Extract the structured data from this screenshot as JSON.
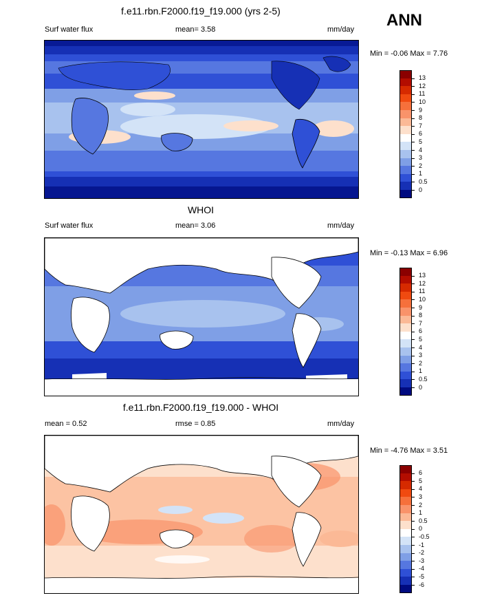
{
  "season": "ANN",
  "panels": [
    {
      "title": "f.e11.rbn.F2000.f19_f19.000 (yrs 2-5)",
      "left_label": "Surf water flux",
      "center_label": "mean=   3.58",
      "units": "mm/day",
      "range_text": "Min =  -0.06 Max =   7.76",
      "colorbar": {
        "labels": [
          "13",
          "12",
          "11",
          "10",
          "9",
          "8",
          "7",
          "6",
          "5",
          "4",
          "3",
          "2",
          "1",
          "0.5",
          "0"
        ],
        "colors": [
          "#8b0000",
          "#b30d00",
          "#d62a00",
          "#f04a10",
          "#f6703b",
          "#f9936a",
          "#fbb996",
          "#fde0cc",
          "#ffffff",
          "#d3e3f7",
          "#a8c2ee",
          "#7f9fe6",
          "#5677e0",
          "#2f50d6",
          "#1630b5",
          "#000b80"
        ]
      }
    },
    {
      "title": "WHOI",
      "left_label": "Surf water flux",
      "center_label": "mean=   3.06",
      "units": "mm/day",
      "range_text": "Min =  -0.13 Max =   6.96",
      "colorbar": {
        "labels": [
          "13",
          "12",
          "11",
          "10",
          "9",
          "8",
          "7",
          "6",
          "5",
          "4",
          "3",
          "2",
          "1",
          "0.5",
          "0"
        ],
        "colors": [
          "#8b0000",
          "#b30d00",
          "#d62a00",
          "#f04a10",
          "#f6703b",
          "#f9936a",
          "#fbb996",
          "#fde0cc",
          "#ffffff",
          "#d3e3f7",
          "#a8c2ee",
          "#7f9fe6",
          "#5677e0",
          "#2f50d6",
          "#1630b5",
          "#000b80"
        ]
      }
    },
    {
      "title": "f.e11.rbn.F2000.f19_f19.000 - WHOI",
      "left_label": "mean =   0.52",
      "center_label": "rmse =   0.85",
      "units": "mm/day",
      "range_text": "Min =  -4.76 Max =   3.51",
      "colorbar": {
        "labels": [
          "6",
          "5",
          "4",
          "3",
          "2",
          "1",
          "0.5",
          "0",
          "-0.5",
          "-1",
          "-2",
          "-3",
          "-4",
          "-5",
          "-6"
        ],
        "colors": [
          "#8b0000",
          "#b30d00",
          "#d62a00",
          "#f04a10",
          "#f6703b",
          "#f9936a",
          "#fbb996",
          "#fde0cc",
          "#ffffff",
          "#d3e3f7",
          "#a8c2ee",
          "#7f9fe6",
          "#5677e0",
          "#2f50d6",
          "#1630b5",
          "#000b80"
        ]
      }
    }
  ]
}
